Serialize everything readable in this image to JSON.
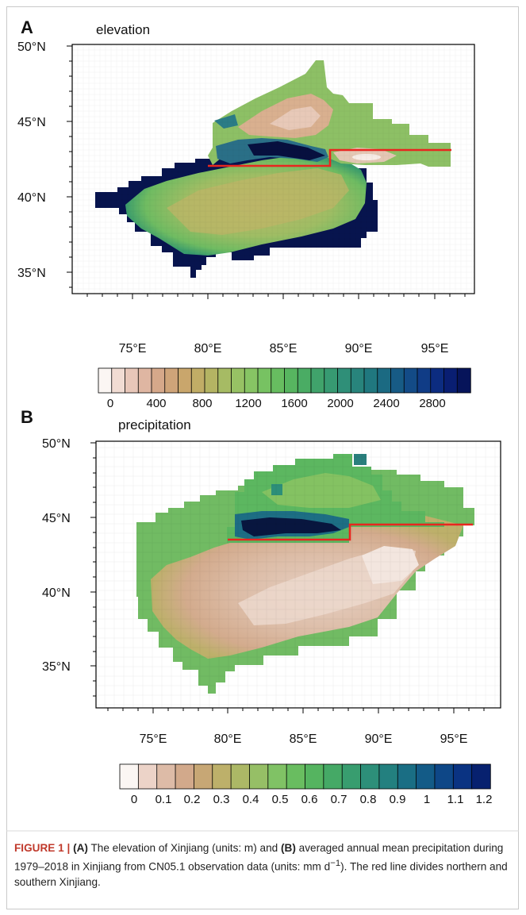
{
  "panels": [
    {
      "letter": "A",
      "title": "elevation",
      "y_ticks": [
        "50°N",
        "45°N",
        "40°N",
        "35°N"
      ],
      "x_ticks": [
        "75°E",
        "80°E",
        "85°E",
        "90°E",
        "95°E"
      ],
      "colorbar_labels": [
        "0",
        "400",
        "800",
        "1200",
        "1600",
        "2000",
        "2400",
        "2800"
      ],
      "colorbar_colors": [
        "#fbf6f3",
        "#f1dcd3",
        "#e8c7b9",
        "#dfb6a2",
        "#d6a88a",
        "#cfa479",
        "#c9a66c",
        "#c1ad66",
        "#b4b463",
        "#a6bb64",
        "#97c164",
        "#87c464",
        "#77c262",
        "#67bd60",
        "#57b560",
        "#4aac64",
        "#40a36b",
        "#379a72",
        "#2f8f78",
        "#28847c",
        "#20787f",
        "#1b6a82",
        "#175b85",
        "#134b87",
        "#103c86",
        "#0c2c80",
        "#091e72",
        "#06145a"
      ]
    },
    {
      "letter": "B",
      "title": "precipitation",
      "y_ticks": [
        "50°N",
        "45°N",
        "40°N",
        "35°N"
      ],
      "x_ticks": [
        "75°E",
        "80°E",
        "85°E",
        "90°E",
        "95°E"
      ],
      "colorbar_labels": [
        "0",
        "0.1",
        "0.2",
        "0.3",
        "0.4",
        "0.5",
        "0.6",
        "0.7",
        "0.8",
        "0.9",
        "1",
        "1.1",
        "1.2"
      ],
      "colorbar_colors": [
        "#fbf6f3",
        "#ecd3c8",
        "#ddbba7",
        "#d2a98b",
        "#c7a775",
        "#bdb06a",
        "#acb866",
        "#96bf66",
        "#80c265",
        "#69bd60",
        "#55b460",
        "#45a966",
        "#389d6f",
        "#2d8f79",
        "#23807f",
        "#1a6e84",
        "#135b87",
        "#0e4787",
        "#0a3382",
        "#07216f"
      ]
    }
  ],
  "caption": {
    "figure_label": "FIGURE 1 | ",
    "part_a_label": "(A)",
    "part_a_text": " The elevation of Xinjiang (units: m) and ",
    "part_b_label": "(B)",
    "part_b_text": " averaged annual mean precipitation during 1979–2018 in Xinjiang from CN05.1 observation data (units: mm d",
    "superscript": "−1",
    "rest": "). The red line divides northern and southern Xinjiang."
  },
  "colors": {
    "divider_line": "#e8261f",
    "frame": "#000000"
  }
}
